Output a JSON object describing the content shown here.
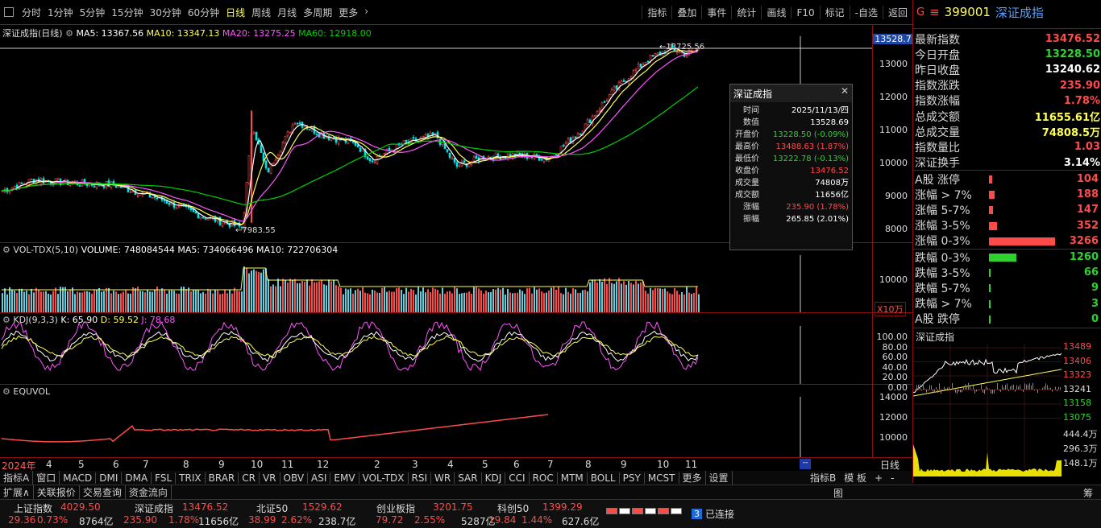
{
  "toolbar": {
    "periods": [
      "分时",
      "1分钟",
      "5分钟",
      "15分钟",
      "30分钟",
      "60分钟",
      "日线",
      "周线",
      "月线",
      "多周期",
      "更多"
    ],
    "active": "日线",
    "right": [
      "指标",
      "叠加",
      "事件",
      "统计",
      "画线",
      "F10",
      "标记",
      "-自选",
      "返回"
    ]
  },
  "chart": {
    "title": "深证成指(日线)",
    "ma5": "MA5: 13367.56",
    "ma10": "MA10: 13347.13",
    "ma20": "MA20: 13275.25",
    "ma60": "MA60: 12918.00",
    "price_ticks": [
      "13000",
      "12000",
      "11000",
      "10000",
      "9000",
      "8000"
    ],
    "cur_price": "13528.7",
    "high_label": "13725.56",
    "low_label": "7983.55"
  },
  "vol": {
    "title": "VOL-TDX(5,10)",
    "volume": "VOLUME: 748084544",
    "ma5": "MA5: 734066496",
    "ma10": "MA10: 722706304",
    "tick": "10000",
    "unit": "X10万"
  },
  "kdj": {
    "title": "KDJ(9,3,3)",
    "k": "K: 65.90",
    "d": "D: 59.52",
    "j": "J: 78.68",
    "ticks": [
      "100.00",
      "80.00",
      "60.00",
      "40.00",
      "20.00",
      "0.00"
    ]
  },
  "equvol": {
    "title": "EQUVOL",
    "ticks": [
      "14000",
      "12000",
      "10000"
    ]
  },
  "xaxis": {
    "labels": [
      "2024年",
      "4",
      "5",
      "6",
      "7",
      "8",
      "9",
      "10",
      "11",
      "12",
      "2",
      "3",
      "4",
      "5",
      "6",
      "7",
      "8",
      "9",
      "10",
      "11"
    ],
    "period": "日线"
  },
  "tooltip": {
    "title": "深证成指",
    "rows": [
      [
        "时间",
        "2025/11/13/四",
        "wht"
      ],
      [
        "数值",
        "13528.69",
        "wht"
      ],
      [
        "开盘价",
        "13228.50 (-0.09%)",
        "green"
      ],
      [
        "最高价",
        "13488.63 (1.87%)",
        "red"
      ],
      [
        "最低价",
        "13222.78 (-0.13%)",
        "green"
      ],
      [
        "收盘价",
        "13476.52",
        "red"
      ],
      [
        "成交量",
        "74808万",
        "wht"
      ],
      [
        "成交额",
        "11656亿",
        "wht"
      ],
      [
        "涨幅",
        "235.90 (1.78%)",
        "red"
      ],
      [
        "振幅",
        "265.85 (2.01%)",
        "wht"
      ]
    ]
  },
  "quote": {
    "code": "399001",
    "name": "深证成指",
    "rows": [
      [
        "最新指数",
        "13476.52",
        "red"
      ],
      [
        "今日开盘",
        "13228.50",
        "green"
      ],
      [
        "昨日收盘",
        "13240.62",
        "wht"
      ],
      [
        "指数涨跌",
        "235.90",
        "red"
      ],
      [
        "指数涨幅",
        "1.78%",
        "red"
      ],
      [
        "总成交额",
        "11655.61亿",
        "yel"
      ],
      [
        "总成交量",
        "74808.5万",
        "yel"
      ],
      [
        "指数量比",
        "1.03",
        "red"
      ],
      [
        "深证换手",
        "3.14%",
        "wht"
      ]
    ]
  },
  "breadth": {
    "up": [
      [
        "A股 涨停",
        "104",
        0.05
      ],
      [
        "涨幅 > 7%",
        "188",
        0.08
      ],
      [
        "涨幅 5-7%",
        "147",
        0.06
      ],
      [
        "涨幅 3-5%",
        "352",
        0.12
      ],
      [
        "涨幅 0-3%",
        "3266",
        1.0
      ]
    ],
    "down": [
      [
        "跌幅 0-3%",
        "1260",
        0.42
      ],
      [
        "跌幅 3-5%",
        "66",
        0.03
      ],
      [
        "跌幅 5-7%",
        "9",
        0.01
      ],
      [
        "跌幅 > 7%",
        "3",
        0.01
      ],
      [
        "A股 跌停",
        "0",
        0.0
      ]
    ]
  },
  "mini": {
    "title": "深证成指",
    "price_ticks": [
      "13489",
      "13406",
      "13323",
      "13241",
      "13158",
      "13075"
    ],
    "vol_ticks": [
      "444.4万",
      "296.3万",
      "148.1万"
    ]
  },
  "tabs1": [
    "指标A",
    "窗口",
    "MACD",
    "DMI",
    "DMA",
    "FSL",
    "TRIX",
    "BRAR",
    "CR",
    "VR",
    "OBV",
    "ASI",
    "EMV",
    "VOL-TDX",
    "RSI",
    "WR",
    "SAR",
    "KDJ",
    "CCI",
    "ROC",
    "MTM",
    "BOLL",
    "PSY",
    "MCST",
    "更多",
    "设置"
  ],
  "tabs1r": [
    "指标B",
    "模 板",
    "+",
    "-"
  ],
  "tabs2": [
    "扩展∧",
    "关联报价",
    "交易查询",
    "资金流向"
  ],
  "tabs2r": [
    "图",
    "筹"
  ],
  "status": {
    "items": [
      {
        "name": "上证指数",
        "price": "4029.50",
        "chg": "29.36",
        "pct": "0.73%",
        "amt": "8764亿"
      },
      {
        "name": "深证成指",
        "price": "13476.52",
        "chg": "235.90",
        "pct": "1.78%",
        "amt": "11656亿"
      },
      {
        "name": "北证50",
        "price": "1529.62",
        "chg": "38.99",
        "pct": "2.62%",
        "amt": "238.7亿"
      },
      {
        "name": "创业板指",
        "price": "3201.75",
        "chg": "79.72",
        "pct": "2.55%",
        "amt": "5287亿"
      },
      {
        "name": "科创50",
        "price": "1399.29",
        "chg": "19.84",
        "pct": "1.44%",
        "amt": "627.6亿"
      }
    ],
    "conn_num": "3",
    "conn": "已连接"
  },
  "colors": {
    "up": "#ff4a4a",
    "down": "#2fd12f",
    "ma5": "#ffffff",
    "ma10": "#ffff54",
    "ma20": "#ff54ff",
    "ma60": "#00d000"
  }
}
